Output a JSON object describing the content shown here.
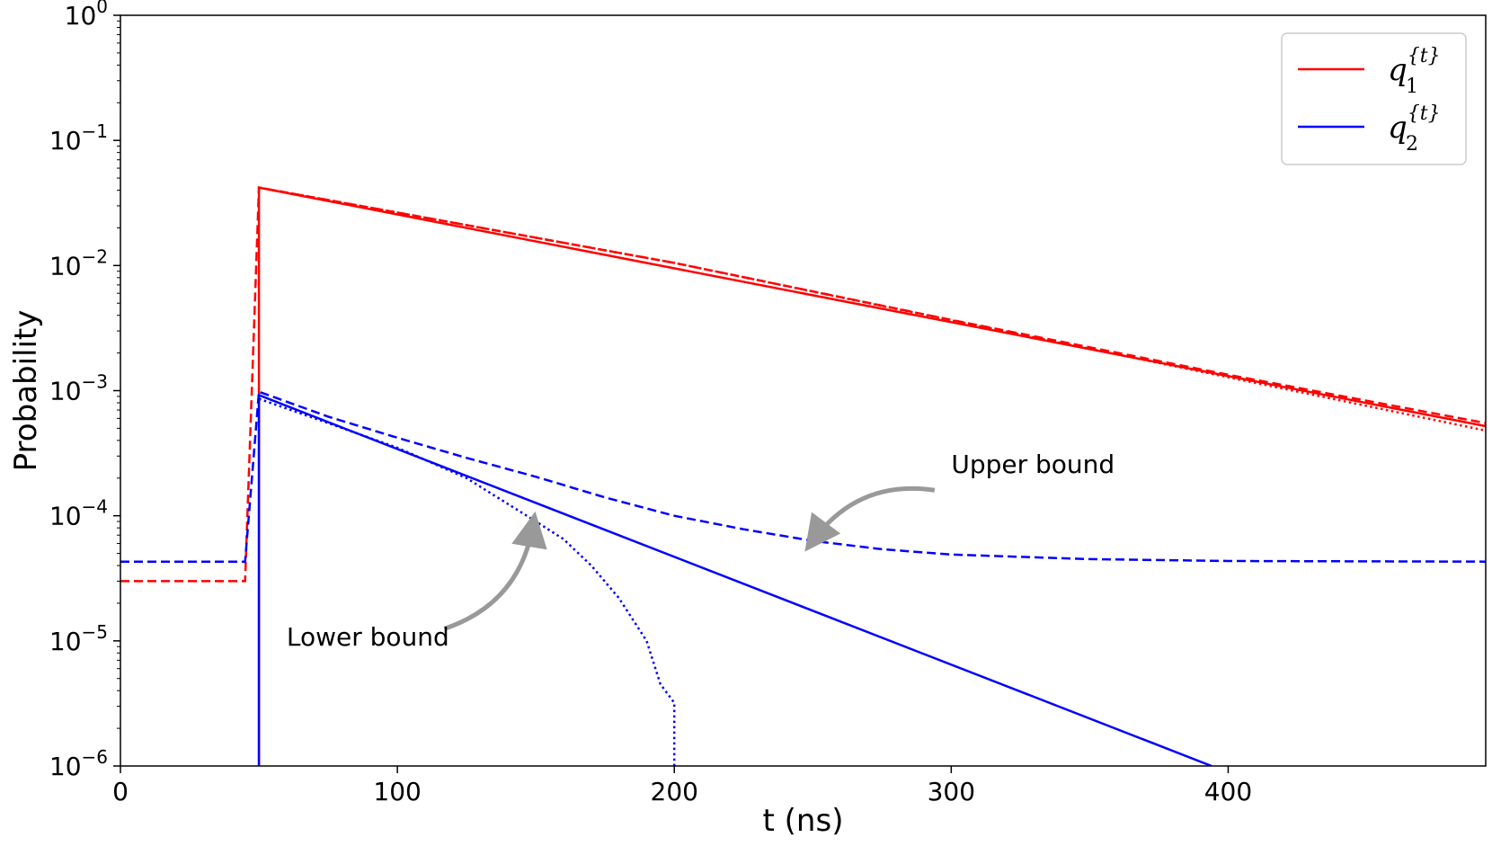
{
  "chart_data": {
    "type": "line",
    "xlabel": "t (ns)",
    "ylabel": "Probability",
    "xlim": [
      0,
      493
    ],
    "ylim": [
      1e-06,
      1
    ],
    "yscale": "log",
    "xticks": [
      0,
      100,
      200,
      300,
      400
    ],
    "yticks": [
      {
        "value": 1.0,
        "base": "10",
        "exp": "0"
      },
      {
        "value": 0.1,
        "base": "10",
        "exp": "−1"
      },
      {
        "value": 0.01,
        "base": "10",
        "exp": "−2"
      },
      {
        "value": 0.001,
        "base": "10",
        "exp": "−3"
      },
      {
        "value": 0.0001,
        "base": "10",
        "exp": "−4"
      },
      {
        "value": 1e-05,
        "base": "10",
        "exp": "−5"
      },
      {
        "value": 1e-06,
        "base": "10",
        "exp": "−6"
      }
    ],
    "grid": false,
    "legend": {
      "position": "top-right",
      "entries": [
        {
          "base": "q",
          "sup": "{t}",
          "sub": "1",
          "color": "#ff0000"
        },
        {
          "base": "q",
          "sup": "{t}",
          "sub": "2",
          "color": "#0000ff"
        }
      ]
    },
    "series": [
      {
        "id": "q1-solid",
        "color": "#ff0000",
        "style": "solid",
        "points": [
          [
            50,
            1e-06
          ],
          [
            50,
            0.042
          ],
          [
            493,
            0.00052
          ]
        ]
      },
      {
        "id": "q1-upper",
        "color": "#ff0000",
        "style": "dashed",
        "points": [
          [
            0,
            3e-05
          ],
          [
            45,
            3e-05
          ],
          [
            50,
            0.042
          ],
          [
            100,
            0.0265
          ],
          [
            200,
            0.0105
          ],
          [
            300,
            0.00368
          ],
          [
            400,
            0.00134
          ],
          [
            493,
            0.00055
          ]
        ]
      },
      {
        "id": "q1-lower",
        "color": "#ff0000",
        "style": "dotted",
        "points": [
          [
            50,
            0.042
          ],
          [
            100,
            0.0265
          ],
          [
            200,
            0.0105
          ],
          [
            300,
            0.00365
          ],
          [
            400,
            0.00128
          ],
          [
            493,
            0.00048
          ]
        ]
      },
      {
        "id": "q2-solid",
        "color": "#0000ff",
        "style": "solid",
        "points": [
          [
            50,
            1e-06
          ],
          [
            50,
            0.00092
          ],
          [
            394,
            1e-06
          ]
        ]
      },
      {
        "id": "q2-upper",
        "color": "#0000ff",
        "style": "dashed",
        "points": [
          [
            0,
            4.3e-05
          ],
          [
            45,
            4.3e-05
          ],
          [
            50,
            0.00098
          ],
          [
            75,
            0.00062
          ],
          [
            100,
            0.00042
          ],
          [
            125,
            0.00029
          ],
          [
            150,
            0.000205
          ],
          [
            175,
            0.00014
          ],
          [
            200,
            0.0001
          ],
          [
            225,
            7.8e-05
          ],
          [
            250,
            6.3e-05
          ],
          [
            275,
            5.4e-05
          ],
          [
            300,
            4.9e-05
          ],
          [
            350,
            4.5e-05
          ],
          [
            400,
            4.35e-05
          ],
          [
            493,
            4.3e-05
          ]
        ]
      },
      {
        "id": "q2-lower",
        "color": "#0000ff",
        "style": "dotted",
        "points": [
          [
            50,
            0.00086
          ],
          [
            75,
            0.00055
          ],
          [
            100,
            0.00035
          ],
          [
            125,
            0.0002
          ],
          [
            150,
            9e-05
          ],
          [
            160,
            6.5e-05
          ],
          [
            170,
            4e-05
          ],
          [
            180,
            2.2e-05
          ],
          [
            190,
            1e-05
          ],
          [
            195,
            4.5e-06
          ],
          [
            200,
            3.2e-06
          ],
          [
            200,
            1e-06
          ]
        ]
      }
    ],
    "annotations": [
      {
        "text": "Upper bound",
        "text_at": [
          300,
          0.00022
        ],
        "arrow_from": [
          294,
          0.00016
        ],
        "arrow_to": [
          250,
          6.3e-05
        ]
      },
      {
        "text": "Lower bound",
        "text_at": [
          60,
          9.2e-06
        ],
        "arrow_from": [
          117,
          1.25e-05
        ],
        "arrow_to": [
          149,
          8.5e-05
        ]
      }
    ]
  }
}
